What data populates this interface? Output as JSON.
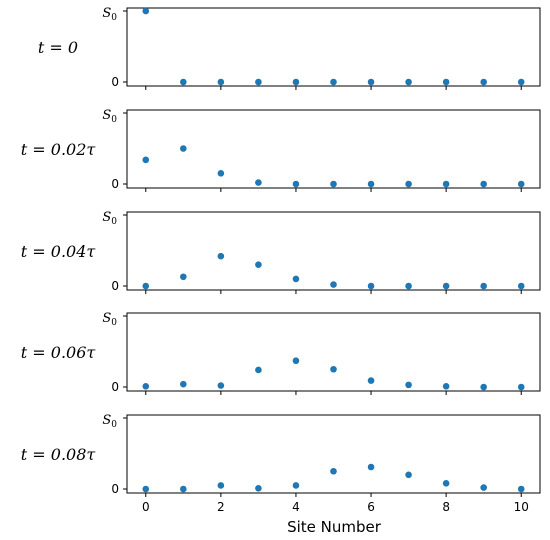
{
  "chart_data": {
    "type": "scatter",
    "xlabel": "Site Number",
    "x_ticks": [
      0,
      2,
      4,
      6,
      8,
      10
    ],
    "y_tick_labels": {
      "bottom": "0",
      "top_symbol": "S",
      "top_subscript": "0"
    },
    "ylim": [
      0,
      1
    ],
    "xlim": [
      -0.5,
      10.5
    ],
    "marker_color": "#1f77b4",
    "x": [
      0,
      1,
      2,
      3,
      4,
      5,
      6,
      7,
      8,
      9,
      10
    ],
    "panels": [
      {
        "label": "t = 0",
        "values": [
          1.0,
          0,
          0,
          0,
          0,
          0,
          0,
          0,
          0,
          0,
          0
        ]
      },
      {
        "label": "t = 0.02τ",
        "values": [
          0.34,
          0.5,
          0.15,
          0.02,
          0,
          0,
          0,
          0,
          0,
          0,
          0
        ]
      },
      {
        "label": "t = 0.04τ",
        "values": [
          0,
          0.13,
          0.42,
          0.3,
          0.1,
          0.02,
          0,
          0,
          0,
          0,
          0
        ]
      },
      {
        "label": "t = 0.06τ",
        "values": [
          0.01,
          0.04,
          0.02,
          0.24,
          0.37,
          0.25,
          0.09,
          0.03,
          0.01,
          0,
          0
        ]
      },
      {
        "label": "t = 0.08τ",
        "values": [
          0,
          0,
          0.05,
          0.01,
          0.05,
          0.25,
          0.31,
          0.2,
          0.08,
          0.02,
          0
        ]
      }
    ]
  }
}
